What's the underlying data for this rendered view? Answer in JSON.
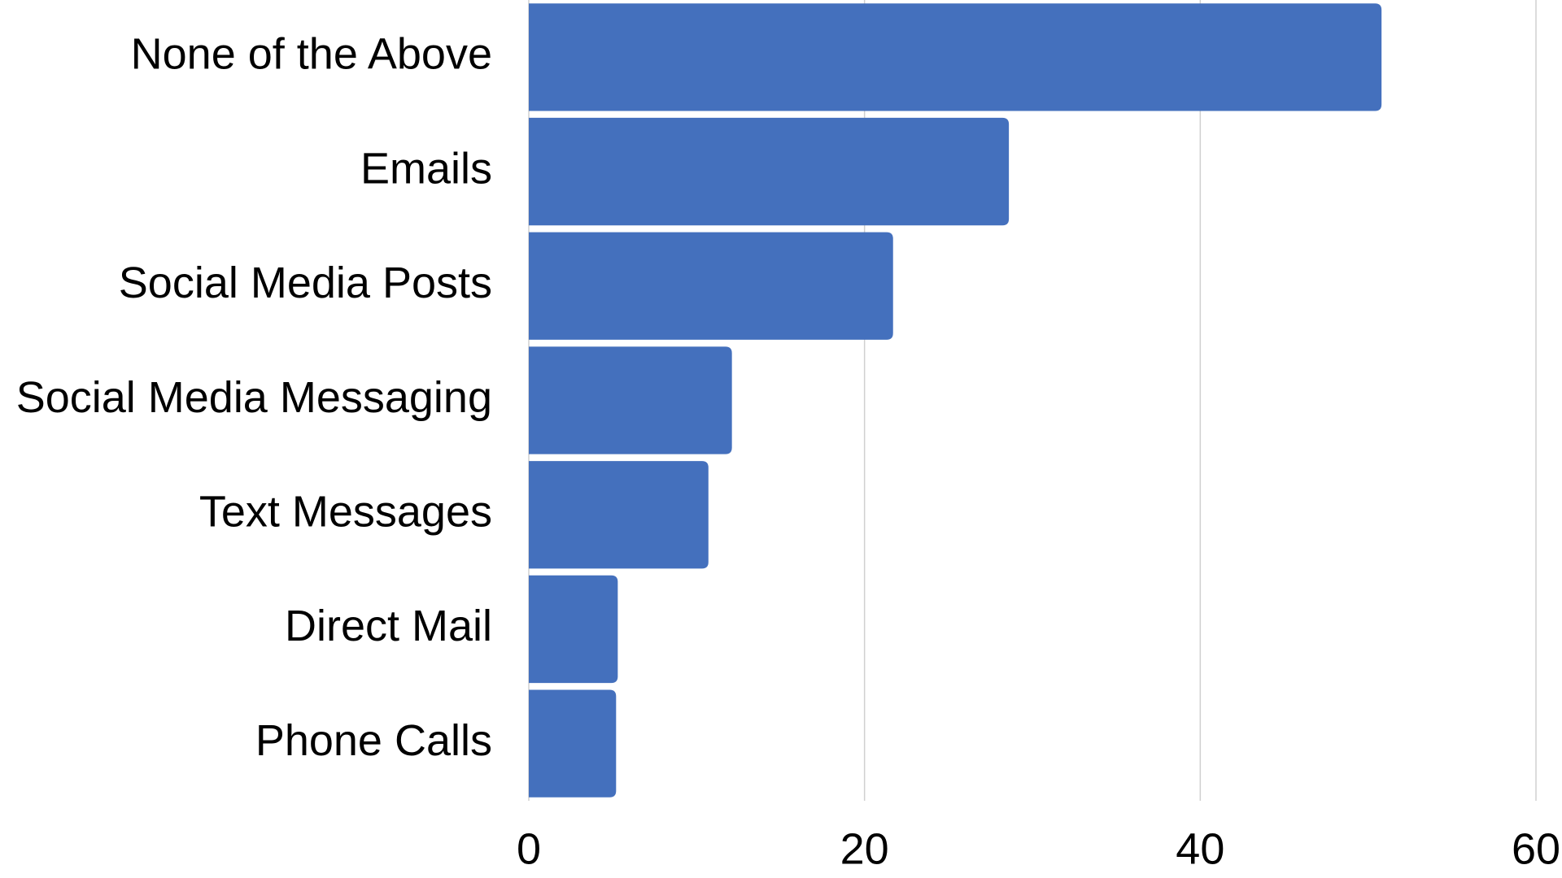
{
  "chart_data": {
    "type": "bar",
    "orientation": "horizontal",
    "categories": [
      "None of the Above",
      "Emails",
      "Social Media Posts",
      "Social Media Messaging",
      "Text Messages",
      "Direct Mail",
      "Phone Calls"
    ],
    "values": [
      50.8,
      28.6,
      21.7,
      12.1,
      10.7,
      5.3,
      5.2
    ],
    "color": "#4470bd",
    "xlim": [
      0,
      60
    ],
    "xticks": [
      0,
      20,
      40,
      60
    ],
    "grid": true
  }
}
